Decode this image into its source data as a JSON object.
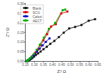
{
  "chart_data": {
    "type": "line",
    "xlabel": "Z'/ Ω",
    "ylabel": "Z''/ Ω",
    "xlim": [
      0.25,
      0.65
    ],
    "ylim": [
      0.0,
      0.3
    ],
    "xticks": [
      0.25,
      {
        "value": 0.3,
        "label": "0.30"
      },
      0.35,
      {
        "value": 0.4,
        "label": "0.40"
      },
      0.45,
      {
        "value": 0.5,
        "label": "0.50"
      },
      0.55,
      {
        "value": 0.6,
        "label": "0.60"
      },
      0.65
    ],
    "yticks": [
      {
        "value": 0,
        "label": "0.00"
      },
      0.05,
      {
        "value": 0.1,
        "label": "0.10"
      },
      0.15,
      {
        "value": 0.2,
        "label": "0.20"
      },
      0.25,
      {
        "value": 0.3,
        "label": "0.30"
      }
    ],
    "grid": false,
    "legend": "upper left",
    "marker": "square",
    "series": [
      {
        "name": "Blank",
        "color": "#111111",
        "x": [
          0.26,
          0.262,
          0.265,
          0.268,
          0.272,
          0.277,
          0.283,
          0.29,
          0.298,
          0.308,
          0.32,
          0.334,
          0.35,
          0.368,
          0.388,
          0.41,
          0.435,
          0.462,
          0.492,
          0.525,
          0.56,
          0.6,
          0.635
        ],
        "values": [
          0.0,
          0.001,
          0.002,
          0.004,
          0.006,
          0.009,
          0.013,
          0.018,
          0.024,
          0.032,
          0.04,
          0.05,
          0.062,
          0.075,
          0.09,
          0.105,
          0.125,
          0.148,
          0.17,
          0.178,
          0.188,
          0.21,
          0.218
        ]
      },
      {
        "name": "SCG",
        "color": "#dd0000",
        "x": [
          0.258,
          0.26,
          0.263,
          0.267,
          0.272,
          0.278,
          0.285,
          0.294,
          0.305,
          0.318,
          0.333,
          0.35,
          0.37,
          0.392,
          0.418,
          0.448,
          0.482
        ],
        "values": [
          0.0,
          0.001,
          0.003,
          0.006,
          0.01,
          0.015,
          0.022,
          0.031,
          0.044,
          0.06,
          0.082,
          0.108,
          0.14,
          0.18,
          0.192,
          0.248,
          0.258
        ]
      },
      {
        "name": "Cabot",
        "color": "#0000cc",
        "x": [
          0.257,
          0.259,
          0.262,
          0.266,
          0.271,
          0.277,
          0.284,
          0.293,
          0.303,
          0.315,
          0.329,
          0.345,
          0.363,
          0.383
        ],
        "values": [
          0.0,
          0.001,
          0.003,
          0.005,
          0.008,
          0.013,
          0.019,
          0.027,
          0.037,
          0.05,
          0.065,
          0.082,
          0.1,
          0.118
        ]
      },
      {
        "name": "AECT",
        "color": "#00aa00",
        "x": [
          0.257,
          0.259,
          0.262,
          0.266,
          0.271,
          0.278,
          0.287,
          0.298,
          0.312,
          0.33,
          0.352,
          0.38,
          0.414,
          0.456,
          0.47
        ],
        "values": [
          0.0,
          0.001,
          0.003,
          0.006,
          0.01,
          0.016,
          0.025,
          0.038,
          0.058,
          0.086,
          0.122,
          0.168,
          0.198,
          0.265,
          0.268
        ]
      }
    ]
  }
}
